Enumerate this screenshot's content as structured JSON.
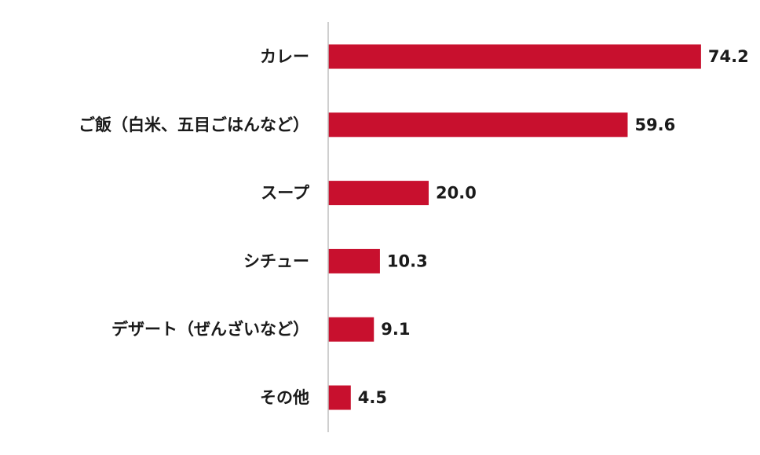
{
  "chart_data": {
    "type": "bar",
    "orientation": "horizontal",
    "categories": [
      "カレー",
      "ご飯（白米、五目ごはんなど）",
      "スープ",
      "シチュー",
      "デザート（ぜんざいなど）",
      "その他"
    ],
    "values": [
      74.2,
      59.6,
      20.0,
      10.3,
      9.1,
      4.5
    ],
    "value_labels": [
      "74.2",
      "59.6",
      "20.0",
      "10.3",
      "9.1",
      "4.5"
    ],
    "title": "",
    "xlabel": "",
    "ylabel": "",
    "xlim": [
      0,
      80
    ],
    "grid": false,
    "legend": "none",
    "bar_color": "#c8102e",
    "axis_color": "#bfbfbf"
  }
}
